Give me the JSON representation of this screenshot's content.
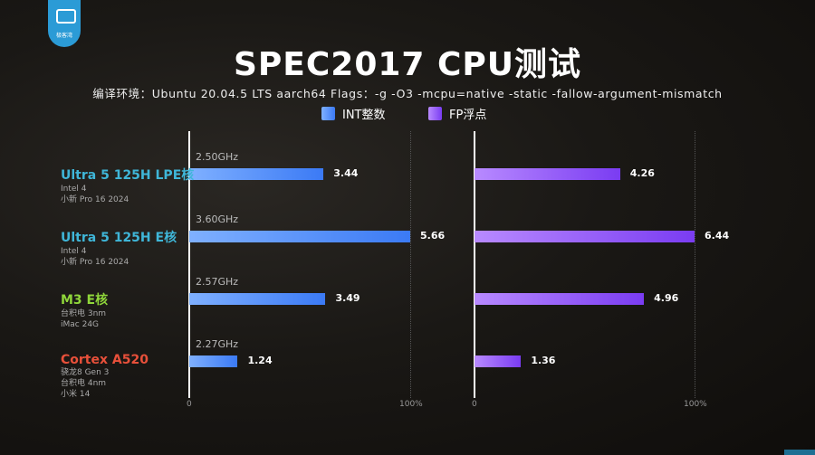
{
  "logo": {
    "text": "极客湾"
  },
  "chart_data": {
    "type": "bar",
    "title": "SPEC2017 CPU测试",
    "subtitle": "编译环境：Ubuntu 20.04.5 LTS aarch64 Flags：-g -O3 -mcpu=native -static -fallow-argument-mismatch",
    "categories": [
      {
        "name": "Ultra 5 125H LPE核",
        "color": "#3fb6d8",
        "details": [
          "Intel 4",
          "小新 Pro 16 2024"
        ],
        "freq": "2.50GHz"
      },
      {
        "name": "Ultra 5 125H E核",
        "color": "#3fb6d8",
        "details": [
          "Intel 4",
          "小新 Pro 16 2024"
        ],
        "freq": "3.60GHz"
      },
      {
        "name": "M3 E核",
        "color": "#8fd63a",
        "details": [
          "台积电 3nm",
          "iMac 24G"
        ],
        "freq": "2.57GHz"
      },
      {
        "name": "Cortex A520",
        "color": "#e8503a",
        "details": [
          "骁龙8 Gen 3",
          "台积电 4nm",
          "小米 14"
        ],
        "freq": "2.27GHz"
      }
    ],
    "series": [
      {
        "name": "INT整数",
        "color": "#4a86f7",
        "values": [
          3.44,
          5.66,
          3.49,
          1.24
        ],
        "max": 5.66
      },
      {
        "name": "FP浮点",
        "color": "#8b4df5",
        "values": [
          4.26,
          6.44,
          4.96,
          1.36
        ],
        "max": 6.44
      }
    ],
    "axis_ticks": [
      "0",
      "100%"
    ]
  }
}
